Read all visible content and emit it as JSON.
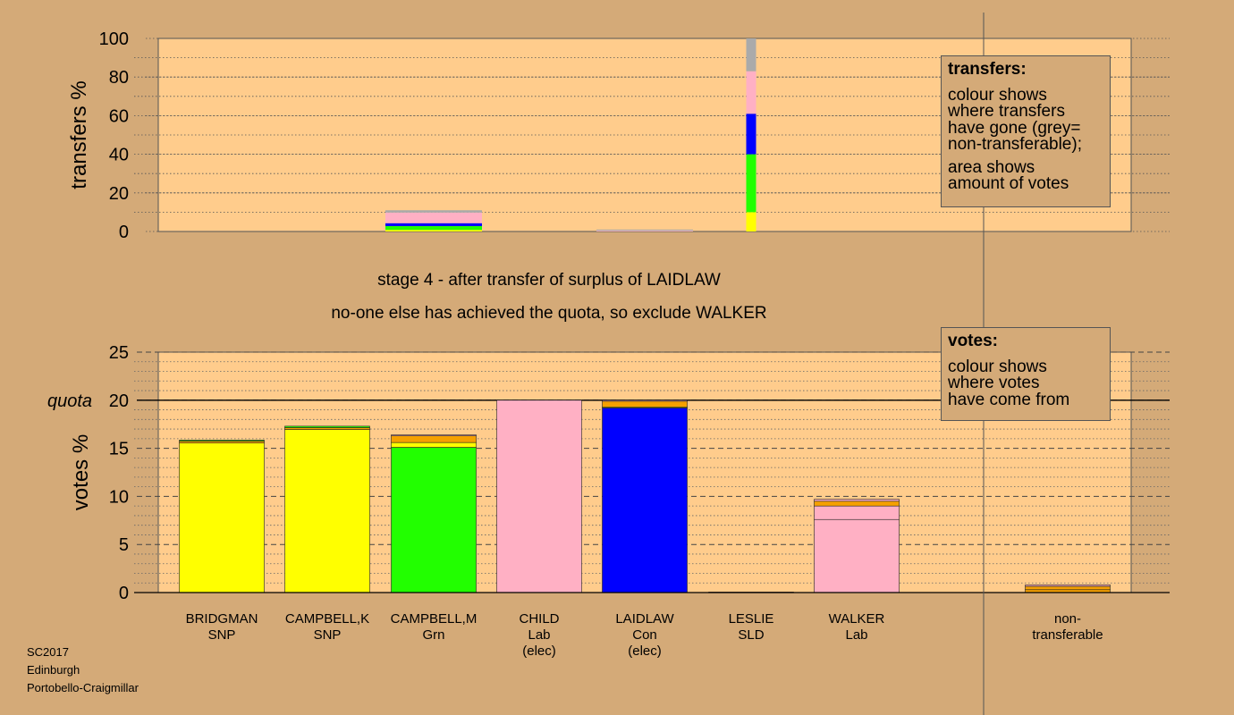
{
  "chart_data": [
    {
      "type": "bar",
      "stacked": true,
      "ylabel": "transfers %",
      "ylim": [
        0,
        100
      ],
      "yticks": [
        0,
        20,
        40,
        60,
        80,
        100
      ],
      "grid": "dotted horizontal",
      "categories": [
        "BRIDGMAN",
        "CAMPBELL,K",
        "CAMPBELL,M",
        "CHILD",
        "LAIDLAW",
        "LESLIE",
        "WALKER",
        "",
        "non-transferable"
      ],
      "bars": [
        {
          "category": "CAMPBELL,M",
          "wide": true,
          "segments": [
            {
              "value": 0.8,
              "color": "#ffff00"
            },
            {
              "value": 2.0,
              "color": "#22ff00"
            },
            {
              "value": 1.5,
              "color": "#0000ff"
            },
            {
              "value": 5.5,
              "color": "#ffb0c4"
            },
            {
              "value": 1.2,
              "color": "#aaaaaa"
            }
          ]
        },
        {
          "category": "LAIDLAW",
          "wide": true,
          "segments": [
            {
              "value": 0.4,
              "color": "#ffb0c4"
            },
            {
              "value": 0.6,
              "color": "#aaaaaa"
            }
          ]
        },
        {
          "category": "LESLIE",
          "wide": false,
          "segments": [
            {
              "value": 10,
              "color": "#ffff00"
            },
            {
              "value": 30,
              "color": "#22ff00"
            },
            {
              "value": 21,
              "color": "#0000ff"
            },
            {
              "value": 22,
              "color": "#ffb0c4"
            },
            {
              "value": 17,
              "color": "#aaaaaa"
            }
          ]
        }
      ]
    },
    {
      "type": "bar",
      "stacked": true,
      "ylabel": "votes %",
      "ylim": [
        0,
        25
      ],
      "yticks": [
        0,
        5,
        10,
        15,
        20,
        25
      ],
      "quota": 20,
      "quota_label": "quota",
      "grid": "dotted minor, dashed major",
      "categories": [
        "BRIDGMAN",
        "CAMPBELL,K",
        "CAMPBELL,M",
        "CHILD",
        "LAIDLAW",
        "LESLIE",
        "WALKER",
        "",
        "non-transferable"
      ],
      "candidates": [
        {
          "name": "BRIDGMAN",
          "party": "SNP",
          "status": "",
          "segments": [
            {
              "value": 15.55,
              "color": "#ffff00"
            },
            {
              "value": 0.2,
              "color": "#f5a000"
            },
            {
              "value": 0.1,
              "color": "#22ff00"
            }
          ]
        },
        {
          "name": "CAMPBELL,K",
          "party": "SNP",
          "status": "",
          "segments": [
            {
              "value": 16.95,
              "color": "#ffff00"
            },
            {
              "value": 0.2,
              "color": "#f5a000"
            },
            {
              "value": 0.15,
              "color": "#22ff00"
            }
          ]
        },
        {
          "name": "CAMPBELL,M",
          "party": "Grn",
          "status": "",
          "segments": [
            {
              "value": 15.1,
              "color": "#22ff00"
            },
            {
              "value": 0.5,
              "color": "#ffff00"
            },
            {
              "value": 0.7,
              "color": "#f5a000"
            },
            {
              "value": 0.1,
              "color": "#ffb0c4"
            }
          ]
        },
        {
          "name": "CHILD",
          "party": "Lab",
          "status": "(elec)",
          "segments": [
            {
              "value": 20.0,
              "color": "#ffb0c4"
            }
          ]
        },
        {
          "name": "LAIDLAW",
          "party": "Con",
          "status": "(elec)",
          "segments": [
            {
              "value": 19.2,
              "color": "#0000ff"
            },
            {
              "value": 0.1,
              "color": "#ffff00"
            },
            {
              "value": 0.6,
              "color": "#f5a000"
            },
            {
              "value": 0.1,
              "color": "#ffb0c4"
            }
          ]
        },
        {
          "name": "LESLIE",
          "party": "SLD",
          "status": "",
          "segments": [
            {
              "value": 0.05,
              "color": "#f5a000"
            }
          ]
        },
        {
          "name": "WALKER",
          "party": "Lab",
          "status": "",
          "segments": [
            {
              "value": 7.6,
              "color": "#ffb0c4"
            },
            {
              "value": 1.4,
              "color": "#ffb0c4"
            },
            {
              "value": 0.5,
              "color": "#f5a000"
            },
            {
              "value": 0.2,
              "color": "#ffb0c4"
            }
          ]
        },
        {
          "name": "",
          "party": "",
          "status": "",
          "segments": []
        },
        {
          "name": "non-",
          "party": "transferable",
          "status": "",
          "segments": [
            {
              "value": 0.3,
              "color": "#f5a000"
            },
            {
              "value": 0.35,
              "color": "#f5a000"
            },
            {
              "value": 0.15,
              "color": "#ffb0c4"
            }
          ]
        }
      ]
    }
  ],
  "headline": {
    "line1": "stage 4 - after transfer of surplus of LAIDLAW",
    "line2": "no-one else has achieved the quota, so exclude WALKER"
  },
  "legend_transfers": {
    "title": "transfers:",
    "lines": [
      "colour shows",
      "where transfers",
      "have gone (grey=",
      "non-transferable);"
    ],
    "lines2": [
      "area shows",
      "amount of votes"
    ]
  },
  "legend_votes": {
    "title": "votes:",
    "lines": [
      "colour shows",
      "where votes",
      "have come from"
    ]
  },
  "footer": {
    "line1": "SC2017",
    "line2": "Edinburgh",
    "line3": "Portobello-Craigmillar"
  },
  "colors": {
    "background": "#d4aa78",
    "plot_background": "#ffcc8c",
    "snp": "#ffff00",
    "grn": "#22ff00",
    "lab": "#ffb0c4",
    "con": "#0000ff",
    "ld": "#f5a000",
    "non_transferable": "#aaaaaa"
  }
}
